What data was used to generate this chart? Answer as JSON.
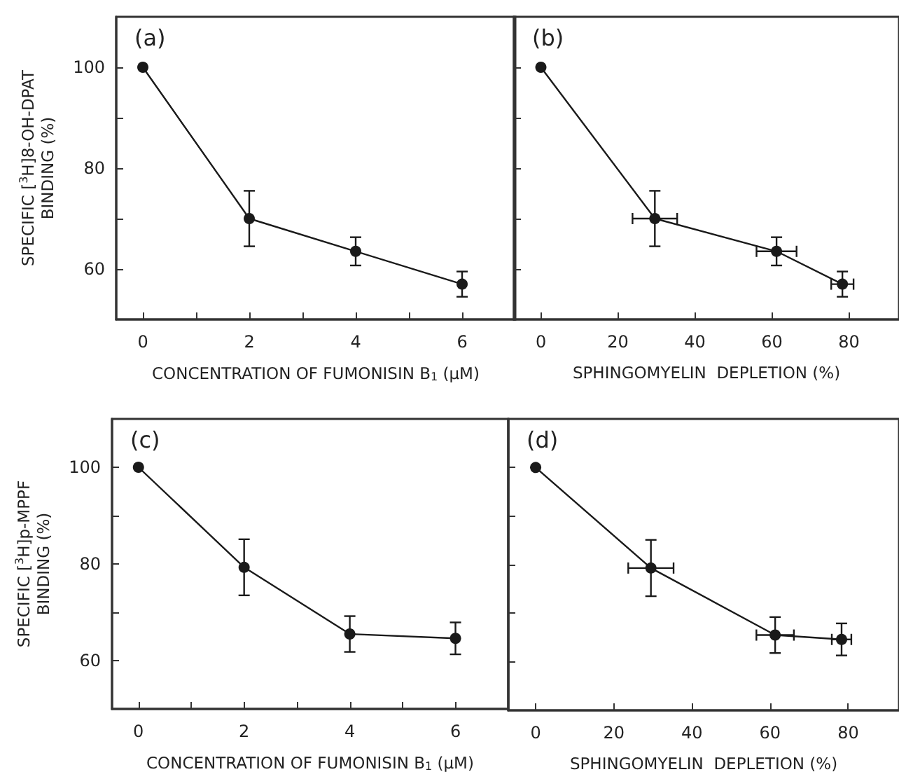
{
  "chart_data": [
    {
      "type": "line",
      "title": "(a)",
      "xlabel": "CONCENTRATION OF FUMONISIN B$_{1}$ (μM)",
      "ylabel": "SPECIFIC [$^{3}$H]8-OH-DPAT\nBINDING (%)",
      "x": [
        0,
        2,
        4,
        6
      ],
      "values": [
        100,
        70,
        63.5,
        57
      ],
      "errors": [
        null,
        5.5,
        2.8,
        2.5
      ],
      "marker": "circle",
      "color": "#1a1a1a",
      "xlim": [
        -0.5,
        7
      ],
      "ylim": [
        50,
        110
      ],
      "xticks": [
        0,
        {
          "value": 1,
          "label": null
        },
        2,
        {
          "value": 3,
          "label": null
        },
        4,
        {
          "value": 5,
          "label": null
        },
        6
      ],
      "yticks": [
        60,
        {
          "value": 70,
          "label": null
        },
        80,
        {
          "value": 90,
          "label": null
        },
        100
      ]
    },
    {
      "type": "line",
      "title": "(b)",
      "xlabel": "SPHINGOMYELIN  DEPLETION (%)",
      "x": [
        0,
        29.6,
        61.2,
        78.3
      ],
      "values": [
        100,
        70,
        63.5,
        57
      ],
      "errors": [
        null,
        5.5,
        2.8,
        2.5
      ],
      "xerrors": [
        null,
        5.8,
        5.2,
        2.9
      ],
      "marker": "circle",
      "color": "#1a1a1a",
      "xlim": [
        -7,
        93
      ],
      "ylim": [
        50,
        110
      ],
      "xticks": [
        0,
        20,
        40,
        60,
        80
      ],
      "yticks": [
        {
          "value": 60,
          "label": null
        },
        {
          "value": 70,
          "label": null
        },
        {
          "value": 80,
          "label": null
        },
        {
          "value": 90,
          "label": null
        },
        {
          "value": 100,
          "label": null
        }
      ],
      "tick_labels": "x"
    },
    {
      "type": "line",
      "title": "(c)",
      "xlabel": "CONCENTRATION OF FUMONISIN B$_{1}$ (μM)",
      "ylabel": "SPECIFIC [$^{3}$H]p-MPPF\nBINDING (%)",
      "x": [
        0,
        2,
        4,
        6
      ],
      "values": [
        100,
        79.3,
        65.5,
        64.6
      ],
      "errors": [
        null,
        5.8,
        3.7,
        3.3
      ],
      "marker": "circle",
      "color": "#1a1a1a",
      "xlim": [
        -0.5,
        7
      ],
      "ylim": [
        50,
        110
      ],
      "xticks": [
        0,
        {
          "value": 1,
          "label": null
        },
        2,
        {
          "value": 3,
          "label": null
        },
        4,
        {
          "value": 5,
          "label": null
        },
        6
      ],
      "yticks": [
        60,
        {
          "value": 70,
          "label": null
        },
        80,
        {
          "value": 90,
          "label": null
        },
        100
      ]
    },
    {
      "type": "line",
      "title": "(d)",
      "xlabel": "SPHINGOMYELIN  DEPLETION (%)",
      "x": [
        0,
        29.5,
        61.3,
        78.3
      ],
      "values": [
        100,
        79.3,
        65.5,
        64.6
      ],
      "errors": [
        null,
        5.8,
        3.7,
        3.3
      ],
      "xerrors": [
        null,
        5.8,
        4.8,
        2.5
      ],
      "marker": "circle",
      "color": "#1a1a1a",
      "xlim": [
        -7,
        93
      ],
      "ylim": [
        50,
        110
      ],
      "xticks": [
        0,
        20,
        40,
        60,
        80
      ],
      "yticks": [
        {
          "value": 60,
          "label": null
        },
        {
          "value": 70,
          "label": null
        },
        {
          "value": 80,
          "label": null
        },
        {
          "value": 90,
          "label": null
        },
        {
          "value": 100,
          "label": null
        }
      ],
      "tick_labels": "x"
    }
  ]
}
